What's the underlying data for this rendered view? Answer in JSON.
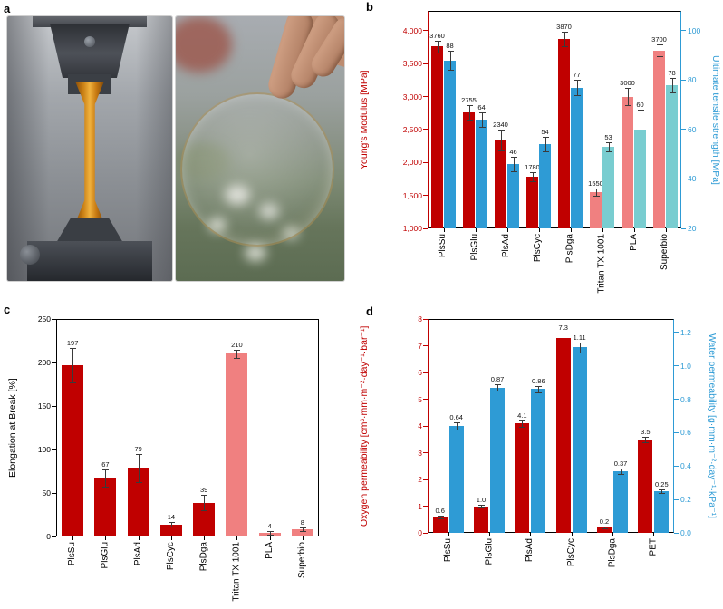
{
  "panels": {
    "a": "a",
    "b": "b",
    "c": "c",
    "d": "d"
  },
  "palette": {
    "main_red": "#c00000",
    "main_blue": "#2e9bd5",
    "reference_red": "#f08080",
    "reference_blue": "#79cdd0",
    "axis_black": "#000000"
  },
  "chart_data": [
    {
      "id": "mechanical",
      "panel": "b",
      "type": "bar",
      "categories": [
        "PlsSu",
        "PlsGlu",
        "PlsAd",
        "PlsCyc",
        "PlsDga",
        "Tritan TX 1001",
        "PLA",
        "Superbio"
      ],
      "series": [
        {
          "name": "Young's Modulus",
          "axis": "left",
          "values": [
            3760,
            2755,
            2340,
            1780,
            3870,
            1550,
            3000,
            3700
          ],
          "value_labels": [
            "3760",
            "2755",
            "2340",
            "1780",
            "3870",
            "1550",
            "3000",
            "3700"
          ],
          "errors": [
            90,
            110,
            160,
            70,
            110,
            60,
            130,
            90
          ],
          "colors": [
            "#c00000",
            "#c00000",
            "#c00000",
            "#c00000",
            "#c00000",
            "#f08080",
            "#f08080",
            "#f08080"
          ]
        },
        {
          "name": "Ultimate tensile strength",
          "axis": "right",
          "values": [
            88,
            64,
            46,
            54,
            77,
            53,
            60,
            78
          ],
          "value_labels": [
            "88",
            "64",
            "46",
            "54",
            "77",
            "53",
            "60",
            "78"
          ],
          "errors": [
            4,
            3,
            3,
            3,
            3,
            2,
            8,
            3
          ],
          "colors": [
            "#2e9bd5",
            "#2e9bd5",
            "#2e9bd5",
            "#2e9bd5",
            "#2e9bd5",
            "#79cdd0",
            "#79cdd0",
            "#79cdd0"
          ]
        }
      ],
      "left_axis": {
        "label": "Young's Modulus [MPa]",
        "min": 1000,
        "max": 4300,
        "ticks": [
          1000,
          1500,
          2000,
          2500,
          3000,
          3500,
          4000
        ],
        "format": "comma",
        "color": "#c00000"
      },
      "right_axis": {
        "label": "Ultimate tensile strength [MPa]",
        "min": 20,
        "max": 108,
        "ticks": [
          20,
          40,
          60,
          80,
          100
        ],
        "format": "int",
        "color": "#2e9bd5"
      },
      "grid": false,
      "legend": "none"
    },
    {
      "id": "elongation",
      "panel": "c",
      "type": "bar",
      "categories": [
        "PlsSu",
        "PlsGlu",
        "PlsAd",
        "PlsCyc",
        "PlsDga",
        "Tritan TX 1001",
        "PLA",
        "Superbio"
      ],
      "series": [
        {
          "name": "Elongation at Break",
          "axis": "left",
          "values": [
            197,
            67,
            79,
            14,
            39,
            210,
            4,
            8
          ],
          "value_labels": [
            "197",
            "67",
            "79",
            "14",
            "39",
            "210",
            "4",
            "8"
          ],
          "errors": [
            20,
            10,
            16,
            3,
            9,
            5,
            2,
            2
          ],
          "colors": [
            "#c00000",
            "#c00000",
            "#c00000",
            "#c00000",
            "#c00000",
            "#f08080",
            "#f08080",
            "#f08080"
          ]
        }
      ],
      "left_axis": {
        "label": "Elongation at Break [%]",
        "min": 0,
        "max": 250,
        "ticks": [
          0,
          50,
          100,
          150,
          200,
          250
        ],
        "format": "int",
        "color": "#000000"
      },
      "grid": false,
      "legend": "none"
    },
    {
      "id": "permeability",
      "panel": "d",
      "type": "bar",
      "categories": [
        "PlsSu",
        "PlsGlu",
        "PlsAd",
        "PlsCyc",
        "PlsDga",
        "PET"
      ],
      "series": [
        {
          "name": "Oxygen permeability",
          "axis": "left",
          "values": [
            0.6,
            1.0,
            4.1,
            7.3,
            0.2,
            3.5
          ],
          "value_labels": [
            "0.6",
            "1.0",
            "4.1",
            "7.3",
            "0.2",
            "3.5"
          ],
          "errors": [
            0.06,
            0.06,
            0.12,
            0.18,
            0.03,
            0.1
          ],
          "colors": [
            "#c00000",
            "#c00000",
            "#c00000",
            "#c00000",
            "#c00000",
            "#c00000"
          ]
        },
        {
          "name": "Water permeability",
          "axis": "right",
          "values": [
            0.64,
            0.87,
            0.86,
            1.11,
            0.37,
            0.25
          ],
          "value_labels": [
            "0.64",
            "0.87",
            "0.86",
            "1.11",
            "0.37",
            "0.25"
          ],
          "errors": [
            0.02,
            0.02,
            0.02,
            0.03,
            0.015,
            0.01
          ],
          "colors": [
            "#2e9bd5",
            "#2e9bd5",
            "#2e9bd5",
            "#2e9bd5",
            "#2e9bd5",
            "#2e9bd5"
          ]
        }
      ],
      "left_axis": {
        "label": "Oxygen permeability [cm³·mm·m⁻²·day⁻¹·bar⁻¹]",
        "min": 0,
        "max": 8,
        "ticks": [
          0,
          1,
          2,
          3,
          4,
          5,
          6,
          7,
          8
        ],
        "format": "int",
        "color": "#c00000"
      },
      "right_axis": {
        "label": "Water permeability [g·mm·m⁻²·day⁻¹·kPa⁻¹]",
        "min": 0,
        "max": 1.28,
        "ticks": [
          0,
          0.2,
          0.4,
          0.6,
          0.8,
          1.0,
          1.2
        ],
        "format": "dec1",
        "color": "#2e9bd5"
      },
      "grid": false,
      "legend": "none"
    }
  ]
}
